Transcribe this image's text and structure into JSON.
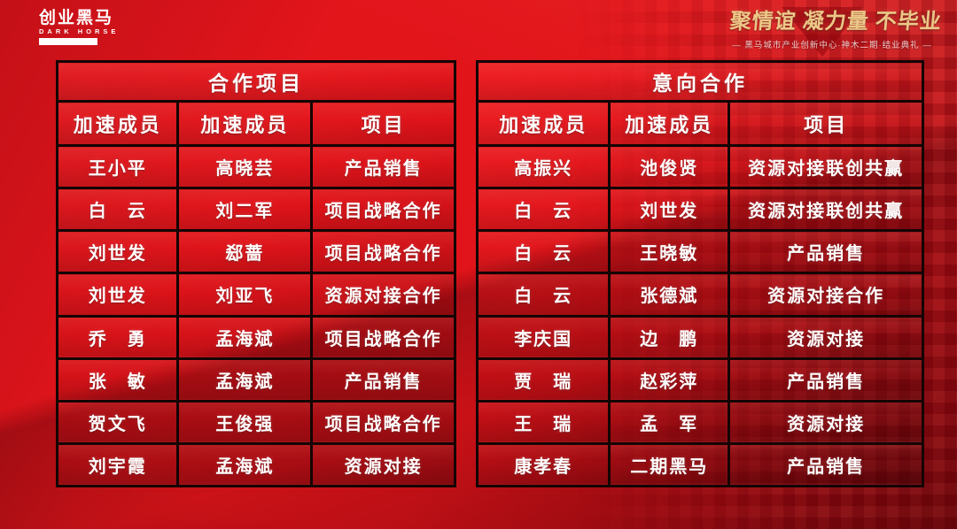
{
  "page": {
    "background_color": "#d8131a",
    "border_color": "#150404",
    "text_color": "#ffffff",
    "gold_color": "#ecc787"
  },
  "logo": {
    "title": "创业黑马",
    "subtitle": "DARK HORSE"
  },
  "banner": {
    "slogan": "聚情谊 凝力量 不毕业",
    "subtitle": "— 黑马城市产业创新中心·神木二期·结业典礼 —"
  },
  "tables": [
    {
      "title": "合作项目",
      "headers": [
        "加速成员",
        "加速成员",
        "项目"
      ],
      "rows": [
        [
          "王小平",
          "高晓芸",
          "产品销售"
        ],
        [
          "白　云",
          "刘二军",
          "项目战略合作"
        ],
        [
          "刘世发",
          "郄蔷",
          "项目战略合作"
        ],
        [
          "刘世发",
          "刘亚飞",
          "资源对接合作"
        ],
        [
          "乔　勇",
          "孟海斌",
          "项目战略合作"
        ],
        [
          "张　敏",
          "孟海斌",
          "产品销售"
        ],
        [
          "贺文飞",
          "王俊强",
          "项目战略合作"
        ],
        [
          "刘宇霞",
          "孟海斌",
          "资源对接"
        ]
      ]
    },
    {
      "title": "意向合作",
      "headers": [
        "加速成员",
        "加速成员",
        "项目"
      ],
      "rows": [
        [
          "高振兴",
          "池俊贤",
          "资源对接联创共赢"
        ],
        [
          "白　云",
          "刘世发",
          "资源对接联创共赢"
        ],
        [
          "白　云",
          "王晓敏",
          "产品销售"
        ],
        [
          "白　云",
          "张德斌",
          "资源对接合作"
        ],
        [
          "李庆国",
          "边　鹏",
          "资源对接"
        ],
        [
          "贾　瑞",
          "赵彩萍",
          "产品销售"
        ],
        [
          "王　瑞",
          "孟　军",
          "资源对接"
        ],
        [
          "康孝春",
          "二期黑马",
          "产品销售"
        ]
      ]
    }
  ]
}
